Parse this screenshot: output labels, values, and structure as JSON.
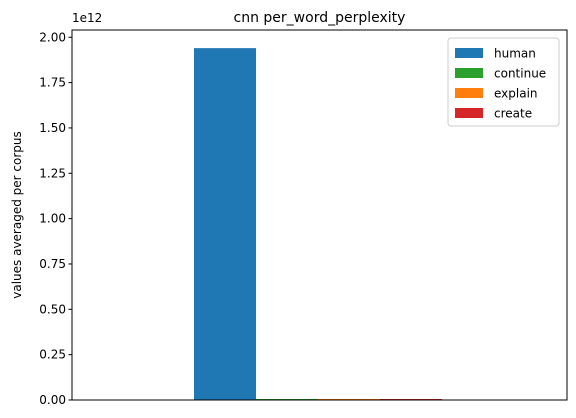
{
  "chart_data": {
    "type": "bar",
    "title": "cnn per_word_perplexity",
    "xlabel": "",
    "ylabel": "values averaged per corpus",
    "offset_text": "1e12",
    "y_scale_factor": 1000000000000,
    "ylim": [
      0,
      2.04
    ],
    "y_ticks": [
      0.0,
      0.25,
      0.5,
      0.75,
      1.0,
      1.25,
      1.5,
      1.75,
      2.0
    ],
    "y_tick_labels": [
      "0.00",
      "0.25",
      "0.50",
      "0.75",
      "1.00",
      "1.25",
      "1.50",
      "1.75",
      "2.00"
    ],
    "categories": [
      ""
    ],
    "series": [
      {
        "name": "human",
        "values": [
          1.94
        ],
        "color": "#1f77b4"
      },
      {
        "name": "continue",
        "values": [
          0.003
        ],
        "color": "#2ca02c"
      },
      {
        "name": "explain",
        "values": [
          0.003
        ],
        "color": "#ff7f0e"
      },
      {
        "name": "create",
        "values": [
          0.003
        ],
        "color": "#d62728"
      }
    ],
    "grid": false,
    "legend_position": "top-right"
  }
}
